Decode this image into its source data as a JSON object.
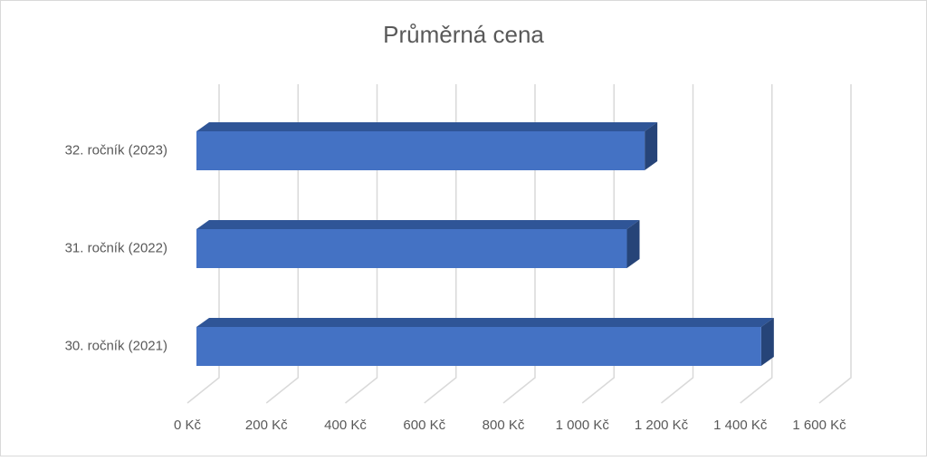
{
  "chart_data": {
    "type": "bar3d_horizontal",
    "title": "Průměrná cena",
    "categories": [
      "32. ročník (2023)",
      "31. ročník (2022)",
      "30. ročník (2021)"
    ],
    "values": [
      1135,
      1090,
      1430
    ],
    "color": "#4472c4",
    "xlim": [
      0,
      1600
    ],
    "xticks": [
      {
        "value": 0,
        "label": "0 Kč"
      },
      {
        "value": 200,
        "label": "200 Kč"
      },
      {
        "value": 400,
        "label": "400 Kč"
      },
      {
        "value": 600,
        "label": "600 Kč"
      },
      {
        "value": 800,
        "label": "800 Kč"
      },
      {
        "value": 1000,
        "label": "1 000 Kč"
      },
      {
        "value": 1200,
        "label": "1 200 Kč"
      },
      {
        "value": 1400,
        "label": "1 400 Kč"
      },
      {
        "value": 1600,
        "label": "1 600 Kč"
      }
    ],
    "grid": true
  }
}
